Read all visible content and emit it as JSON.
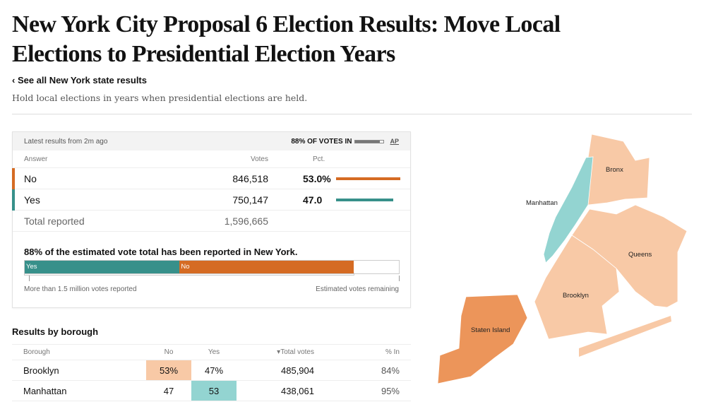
{
  "title": "New York City Proposal 6 Election Results: Move Local Elections to Presidential Election Years",
  "back_link": "‹ See all New York state results",
  "description": "Hold local elections in years when presidential elections are held.",
  "results": {
    "updated": "Latest results from 2m ago",
    "votes_in": "88% OF VOTES IN",
    "votes_in_pct": 88,
    "source": "AP",
    "headers": {
      "answer": "Answer",
      "votes": "Votes",
      "pct": "Pct."
    },
    "rows": [
      {
        "answer": "No",
        "votes": "846,518",
        "pct": "53.0%",
        "pct_value": 53.0,
        "color": "#d56b23"
      },
      {
        "answer": "Yes",
        "votes": "750,147",
        "pct": "47.0",
        "pct_value": 47.0,
        "color": "#37908a"
      }
    ],
    "total_label": "Total reported",
    "total": "1,596,665",
    "estimate_text": "88% of the estimated vote total has been reported in New York.",
    "bar": {
      "yes_label": "Yes",
      "no_label": "No",
      "yes_share": 41.4,
      "no_share": 46.6
    },
    "left_note": "More than 1.5 million votes reported",
    "right_note": "Estimated votes remaining"
  },
  "borough": {
    "title": "Results by borough",
    "headers": {
      "borough": "Borough",
      "no": "No",
      "yes": "Yes",
      "total": "▾Total votes",
      "in": "% In"
    },
    "rows": [
      {
        "name": "Brooklyn",
        "no": "53%",
        "yes": "47%",
        "total": "485,904",
        "in": "84%",
        "winner": "no"
      },
      {
        "name": "Manhattan",
        "no": "47",
        "yes": "53",
        "total": "438,061",
        "in": "95%",
        "winner": "yes"
      }
    ]
  },
  "map": {
    "labels": {
      "bronx": "Bronx",
      "manhattan": "Manhattan",
      "queens": "Queens",
      "brooklyn": "Brooklyn",
      "staten": "Staten Island"
    },
    "colors": {
      "no_light": "#f8c9a6",
      "no_strong": "#ec955a",
      "yes_light": "#93d4d1"
    }
  }
}
